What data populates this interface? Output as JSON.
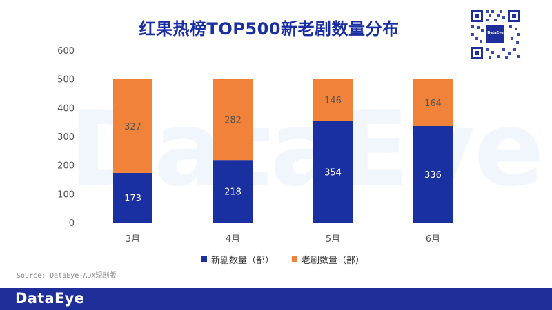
{
  "title": "红果热榜TOP500新老剧数量分布",
  "watermark": "DataEye",
  "qr_label": "DataEye",
  "source": "Source: DataEye-ADX短剧版",
  "footer_logo": "DataEye",
  "colors": {
    "new": "#1a2fa0",
    "old": "#f0823a",
    "title": "#1a2fa0",
    "footer": "#1f2f99"
  },
  "chart_data": {
    "type": "bar",
    "stacked": true,
    "title": "红果热榜TOP500新老剧数量分布",
    "categories": [
      "3月",
      "4月",
      "5月",
      "6月"
    ],
    "series": [
      {
        "name": "新剧数量（部）",
        "values": [
          173,
          218,
          354,
          336
        ],
        "color": "#1a2fa0"
      },
      {
        "name": "老剧数量（部）",
        "values": [
          327,
          282,
          146,
          164
        ],
        "color": "#f0823a"
      }
    ],
    "ylim": [
      0,
      600
    ],
    "yticks": [
      "0",
      "100",
      "200",
      "300",
      "400",
      "500",
      "600"
    ],
    "grid": false,
    "legend": "bottom"
  }
}
